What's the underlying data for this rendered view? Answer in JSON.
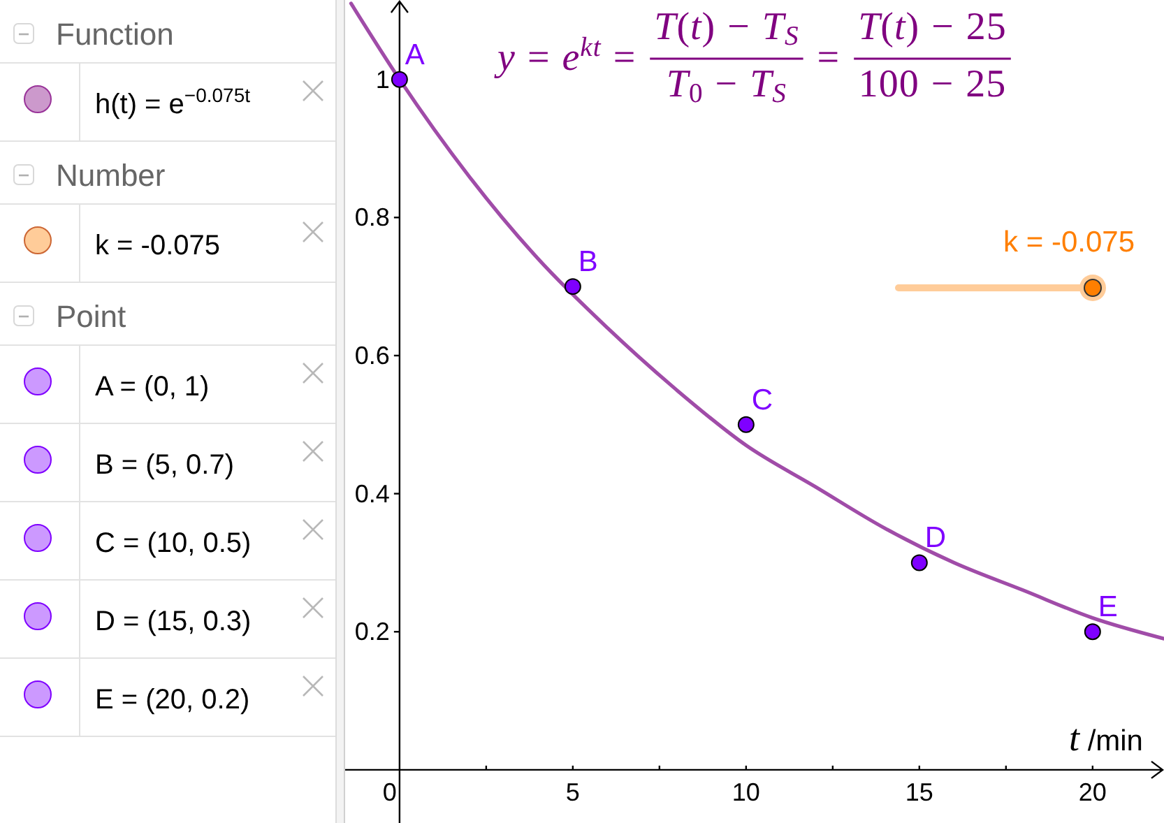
{
  "chart_data": [
    {
      "type": "other",
      "title": "Function",
      "annotations": [
        "h(t) = e$^{−0.075t}$"
      ]
    },
    {
      "type": "other",
      "title": "Number",
      "annotations": [
        "k = -0.075"
      ]
    },
    {
      "type": "other",
      "title": "Point",
      "annotations": [
        "A = (0, 1)",
        "B = (5, 0.7)",
        "C = (10, 0.5)",
        "D = (15, 0.3)",
        "E = (20, 0.2)"
      ]
    },
    {
      "type": "scatter",
      "xlabel": "t /min",
      "xlim": [
        -1.57,
        22.06
      ],
      "ylim": [
        -0.077,
        1.115
      ],
      "xticks": [
        0,
        {
          "value": 2.5,
          "label": null
        },
        5,
        {
          "value": 7.5,
          "label": null
        },
        10,
        {
          "value": 12.5,
          "label": null
        },
        15,
        {
          "value": 17.5,
          "label": null
        },
        20
      ],
      "yticks": [
        0.2,
        0.4,
        0.6,
        0.8,
        1
      ],
      "marker": "circle",
      "series": [
        {
          "type": "line",
          "marker": "none",
          "color": "#a04ca8",
          "x": [
            -1.4,
            0,
            2,
            4,
            6,
            8,
            10,
            12,
            14,
            16,
            18,
            20,
            22.06
          ],
          "values": [
            1.11,
            1,
            0.86,
            0.74,
            0.64,
            0.55,
            0.47,
            0.41,
            0.35,
            0.3,
            0.26,
            0.22,
            0.19
          ]
        },
        {
          "type": "scatter",
          "color": "#7f00ff",
          "x": [
            0,
            5,
            10,
            15,
            20
          ],
          "values": [
            1,
            0.7,
            0.5,
            0.3,
            0.2
          ]
        }
      ],
      "annotations": [
        "y = e$^{kt}$ =",
        "T(t) − T$_{S}$",
        "T$_{0}$ − T$_{S}$",
        "=",
        "T(t) − 25",
        "100 − 25",
        "k = -0.075",
        {
          "text": "A",
          "x": 0,
          "y": 1
        },
        {
          "text": "B",
          "x": 5,
          "y": 0.7
        },
        {
          "text": "C",
          "x": 10,
          "y": 0.5
        },
        {
          "text": "D",
          "x": 15,
          "y": 0.3
        },
        {
          "text": "E",
          "x": 20,
          "y": 0.2
        }
      ]
    }
  ]
}
